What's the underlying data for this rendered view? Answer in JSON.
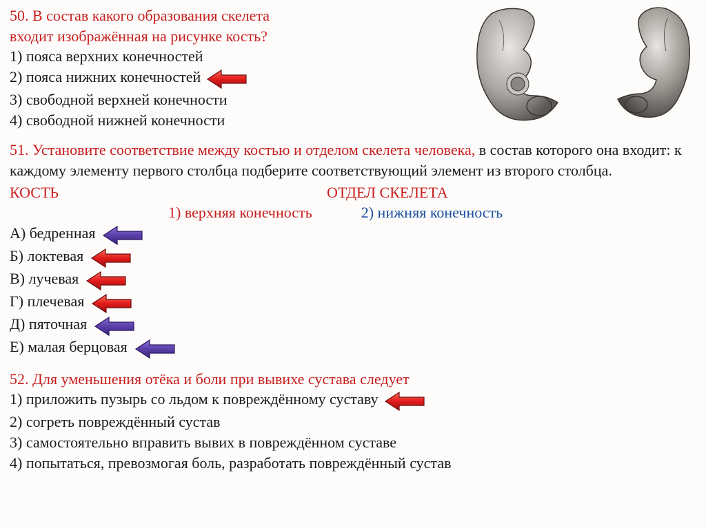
{
  "q50": {
    "prompt_p1": "50. В состав какого образования скелета",
    "prompt_p2": "входит изображённая на рисунке кость?",
    "opts": [
      "1) пояса верхних конечностей",
      "2) пояса нижних конечностей",
      "3) свободной верхней конечности",
      "4) свободной нижней конечности"
    ],
    "correct_idx": 1
  },
  "q51": {
    "prompt_red": "51. Установите соответствие между костью и отделом скелета человека,",
    "prompt_black": " в состав которого она входит: к каждому элементу первого столбца подберите соответствующий элемент из второго столбца.",
    "left_header": "КОСТЬ",
    "right_header": "ОТДЕЛ СКЕЛЕТА",
    "cat1": "1) верхняя конечность",
    "cat2": "2) нижняя конечность",
    "items": [
      {
        "label": "А) бедренная",
        "color": "purple"
      },
      {
        "label": "Б) локтевая",
        "color": "red"
      },
      {
        "label": "В) лучевая",
        "color": "red"
      },
      {
        "label": "Г) плечевая",
        "color": "red"
      },
      {
        "label": "Д) пяточная",
        "color": "purple"
      },
      {
        "label": "Е) малая берцовая",
        "color": "purple"
      }
    ]
  },
  "q52": {
    "prompt": "52. Для уменьшения отёка и боли при вывихе сустава следует",
    "opts": [
      "1) приложить пузырь со льдом к повреждённому суставу",
      "2) согреть повреждённый сустав",
      "3) самостоятельно вправить вывих в повреждённом суставе",
      "4) попытаться, превозмогая боль, разработать повреждённый сустав"
    ],
    "correct_idx": 0
  },
  "arrow": {
    "red_fill": "#e11b1b",
    "red_stroke": "#6b0f0f",
    "purple_fill": "#5b3fa8",
    "purple_stroke": "#2a1660",
    "width": 60,
    "height": 30
  }
}
